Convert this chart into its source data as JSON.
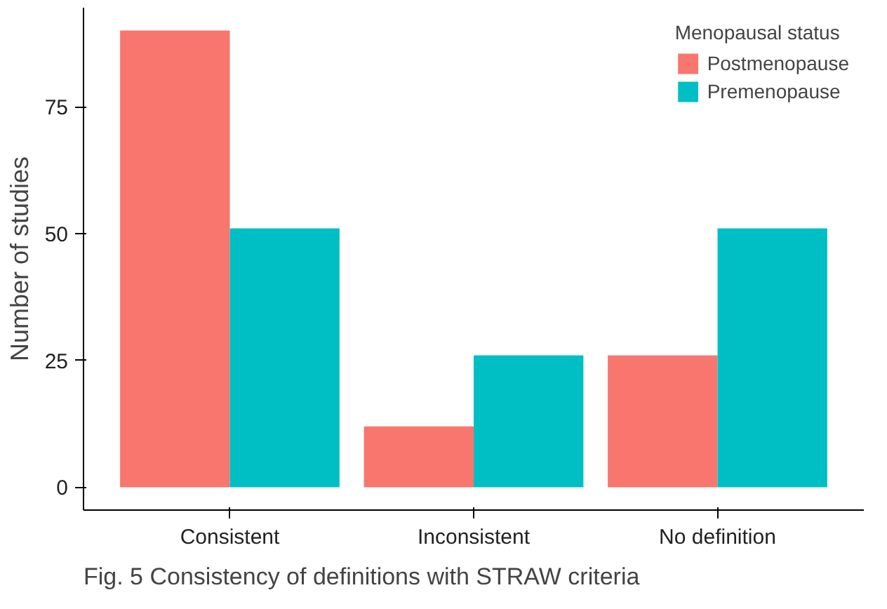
{
  "chart_data": {
    "type": "bar",
    "title": "Fig. 5 Consistency of definitions with STRAW criteria",
    "ylabel": "Number of studies",
    "legend_title": "Menopausal status",
    "categories": [
      "Consistent",
      "Inconsistent",
      "No definition"
    ],
    "series": [
      {
        "name": "Postmenopause",
        "color": "#f8766d",
        "values": [
          90,
          12,
          26
        ]
      },
      {
        "name": "Premenopause",
        "color": "#00bfc4",
        "values": [
          51,
          26,
          51
        ]
      }
    ],
    "ylim": [
      -4.5,
      94.5
    ],
    "yticks": [
      0,
      25,
      50,
      75
    ],
    "legend": "top right"
  }
}
